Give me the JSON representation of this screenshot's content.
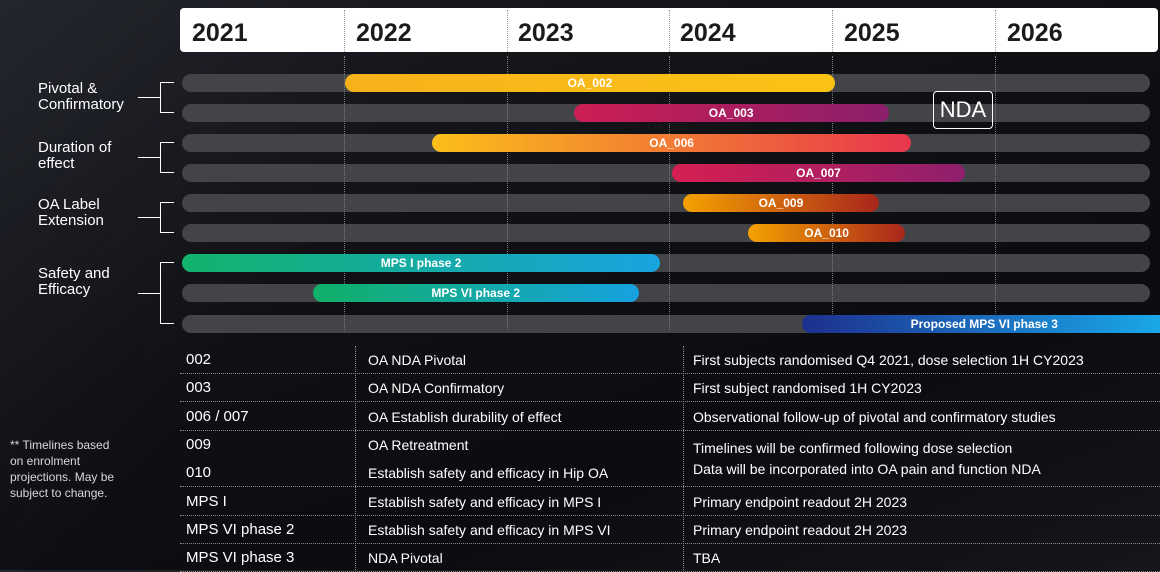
{
  "chart_data": {
    "type": "gantt",
    "x_axis": {
      "unit": "year",
      "range": [
        2021,
        2027
      ],
      "labels": [
        "2021",
        "2022",
        "2023",
        "2024",
        "2025",
        "2026"
      ]
    },
    "categories": [
      {
        "label_lines": [
          "Pivotal &",
          "Confirmatory"
        ]
      },
      {
        "label_lines": [
          "Duration of",
          "effect"
        ]
      },
      {
        "label_lines": [
          "OA Label",
          "Extension"
        ]
      },
      {
        "label_lines": [
          "Safety and",
          "Efficacy"
        ]
      }
    ],
    "bars": [
      {
        "name": "OA_002",
        "category": 0,
        "start": 2022.0,
        "end": 2025.0,
        "colors": [
          "#f6b21b",
          "#fbc316"
        ]
      },
      {
        "name": "OA_003",
        "category": 0,
        "start": 2023.4,
        "end": 2025.33,
        "colors": [
          "#cc1e54",
          "#8b1f6b"
        ]
      },
      {
        "name": "OA_006",
        "category": 1,
        "start": 2022.53,
        "end": 2025.47,
        "colors": [
          "#fbbf1a",
          "#e8364d"
        ]
      },
      {
        "name": "OA_007",
        "category": 1,
        "start": 2024.0,
        "end": 2025.8,
        "colors": [
          "#d61f52",
          "#8f1f6c"
        ]
      },
      {
        "name": "OA_009",
        "category": 2,
        "start": 2024.07,
        "end": 2025.27,
        "colors": [
          "#f5a100",
          "#a8261c"
        ]
      },
      {
        "name": "OA_010",
        "category": 2,
        "start": 2024.47,
        "end": 2025.43,
        "colors": [
          "#f5a100",
          "#a8261c"
        ]
      },
      {
        "name": "MPS I phase  2",
        "category": 3,
        "start": 2021.0,
        "end": 2023.93,
        "colors": [
          "#12b36b",
          "#18a4e0"
        ]
      },
      {
        "name": "MPS VI phase 2",
        "category": 3,
        "start": 2021.8,
        "end": 2023.8,
        "colors": [
          "#10b068",
          "#17a2e0"
        ]
      },
      {
        "name": "Proposed MPS VI phase 3",
        "category": 3,
        "start": 2024.8,
        "end": 2027.0,
        "colors": [
          "#1d2f8f",
          "#1aa8e8"
        ]
      }
    ],
    "annotations": {
      "nda_box": "NDA",
      "ghost_text": "OA_006"
    }
  },
  "table": {
    "rows": [
      {
        "id": "002",
        "desc": "OA NDA Pivotal",
        "note": "First subjects randomised Q4 2021, dose selection 1H CY2023"
      },
      {
        "id": "003",
        "desc": "OA NDA Confirmatory",
        "note": "First subject randomised 1H CY2023"
      },
      {
        "id": "006 / 007",
        "desc": "OA Establish durability of effect",
        "note": "Observational follow-up of pivotal and confirmatory studies"
      },
      {
        "id": "009",
        "desc": "OA Retreatment",
        "note": "Timelines will be confirmed following dose selection"
      },
      {
        "id": "010",
        "desc": "Establish safety and efficacy in Hip OA",
        "note": "Data will be incorporated into OA pain and function NDA"
      },
      {
        "id": "MPS I",
        "desc": "Establish safety and efficacy in MPS I",
        "note": "Primary endpoint readout 2H 2023"
      },
      {
        "id": "MPS VI phase 2",
        "desc": "Establish safety and efficacy in MPS VI",
        "note": "Primary endpoint readout 2H 2023"
      },
      {
        "id": "MPS VI phase 3",
        "desc": "NDA Pivotal",
        "note": "TBA"
      }
    ]
  },
  "footnote": [
    "** Timelines based",
    "on enrolment",
    "projections. May be",
    "subject to change."
  ]
}
